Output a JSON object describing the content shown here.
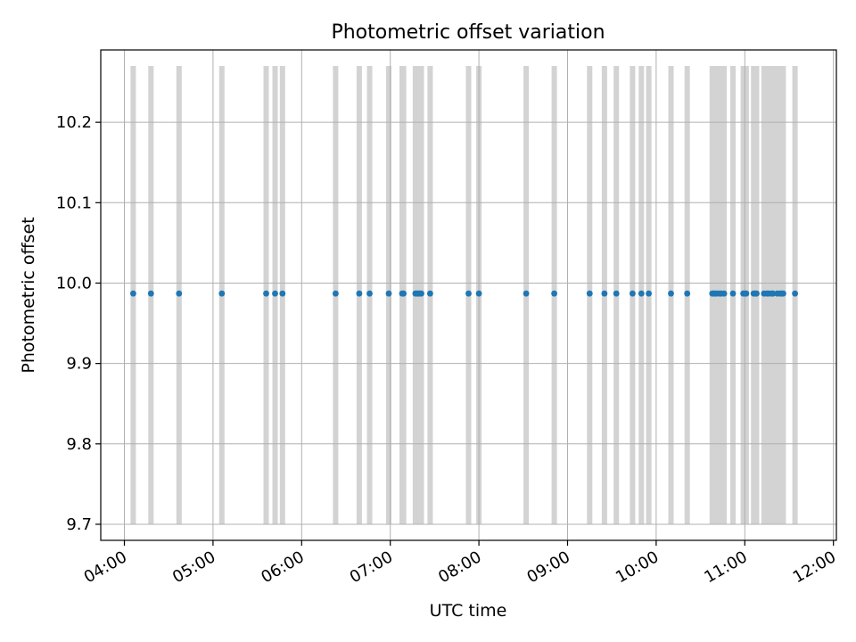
{
  "chart_data": {
    "type": "scatter",
    "title": "Photometric offset variation",
    "xlabel": "UTC time",
    "ylabel": "Photometric offset",
    "xlim": [
      "03:44",
      "12:02"
    ],
    "ylim": [
      9.68,
      10.29
    ],
    "grid": true,
    "x_ticks": [
      "04:00",
      "05:00",
      "06:00",
      "07:00",
      "08:00",
      "09:00",
      "10:00",
      "11:00",
      "12:00"
    ],
    "y_ticks": [
      9.7,
      9.8,
      9.9,
      10.0,
      10.1,
      10.2
    ],
    "y_tick_labels": [
      "9.7",
      "9.8",
      "9.9",
      "10.0",
      "10.1",
      "10.2"
    ],
    "colors": {
      "points": "#1f77b4",
      "spans": "#d3d3d3",
      "grid": "#b0b0b0"
    },
    "vertical_spans": {
      "y_from": 9.7,
      "y_to": 10.27
    },
    "series": [
      {
        "times": [
          "04:06",
          "04:18",
          "04:37",
          "05:06",
          "05:36",
          "05:42",
          "05:47",
          "06:23",
          "06:39",
          "06:46",
          "06:59",
          "07:08",
          "07:09",
          "07:17",
          "07:18",
          "07:19",
          "07:20",
          "07:21",
          "07:27",
          "07:53",
          "08:00",
          "08:32",
          "08:51",
          "09:15",
          "09:25",
          "09:33",
          "09:44",
          "09:50",
          "09:55",
          "10:10",
          "10:21",
          "10:38",
          "10:39",
          "10:40",
          "10:41",
          "10:43",
          "10:44",
          "10:46",
          "10:52",
          "10:59",
          "11:00",
          "11:01",
          "11:06",
          "11:07",
          "11:08",
          "11:13",
          "11:15",
          "11:16",
          "11:18",
          "11:19",
          "11:22",
          "11:24",
          "11:25",
          "11:26",
          "11:34"
        ],
        "values": [
          9.987,
          9.987,
          9.987,
          9.987,
          9.987,
          9.987,
          9.987,
          9.987,
          9.987,
          9.987,
          9.987,
          9.987,
          9.987,
          9.987,
          9.987,
          9.987,
          9.987,
          9.987,
          9.987,
          9.987,
          9.987,
          9.987,
          9.987,
          9.987,
          9.987,
          9.987,
          9.987,
          9.987,
          9.987,
          9.987,
          9.987,
          9.987,
          9.987,
          9.987,
          9.987,
          9.987,
          9.987,
          9.987,
          9.987,
          9.987,
          9.987,
          9.987,
          9.987,
          9.987,
          9.987,
          9.987,
          9.987,
          9.987,
          9.987,
          9.987,
          9.987,
          9.987,
          9.987,
          9.987,
          9.987
        ]
      }
    ]
  }
}
